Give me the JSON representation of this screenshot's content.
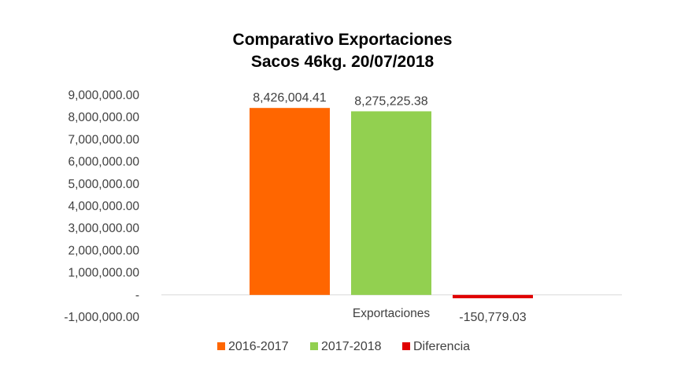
{
  "chart_data": {
    "type": "bar",
    "title_lines": [
      "Comparativo  Exportaciones",
      "Sacos 46kg. 20/07/2018"
    ],
    "categories": [
      "Exportaciones"
    ],
    "series": [
      {
        "name": "2016-2017",
        "values": [
          8426004.41
        ],
        "color": "#FF6600",
        "label": "8,426,004.41"
      },
      {
        "name": "2017-2018",
        "values": [
          8275225.38
        ],
        "color": "#92D050",
        "label": "8,275,225.38"
      },
      {
        "name": "Diferencia",
        "values": [
          -150779.03
        ],
        "color": "#E00000",
        "label": "-150,779.03"
      }
    ],
    "ylim": [
      -1000000,
      9000000
    ],
    "yticks": [
      9000000,
      8000000,
      7000000,
      6000000,
      5000000,
      4000000,
      3000000,
      2000000,
      1000000,
      0,
      -1000000
    ],
    "ytick_labels": [
      "9,000,000.00",
      "8,000,000.00",
      "7,000,000.00",
      "6,000,000.00",
      "5,000,000.00",
      "4,000,000.00",
      "3,000,000.00",
      "2,000,000.00",
      "1,000,000.00",
      "-",
      "-1,000,000.00"
    ],
    "grid": false,
    "legend_position": "bottom",
    "axis_color": "#D9D9D9"
  }
}
